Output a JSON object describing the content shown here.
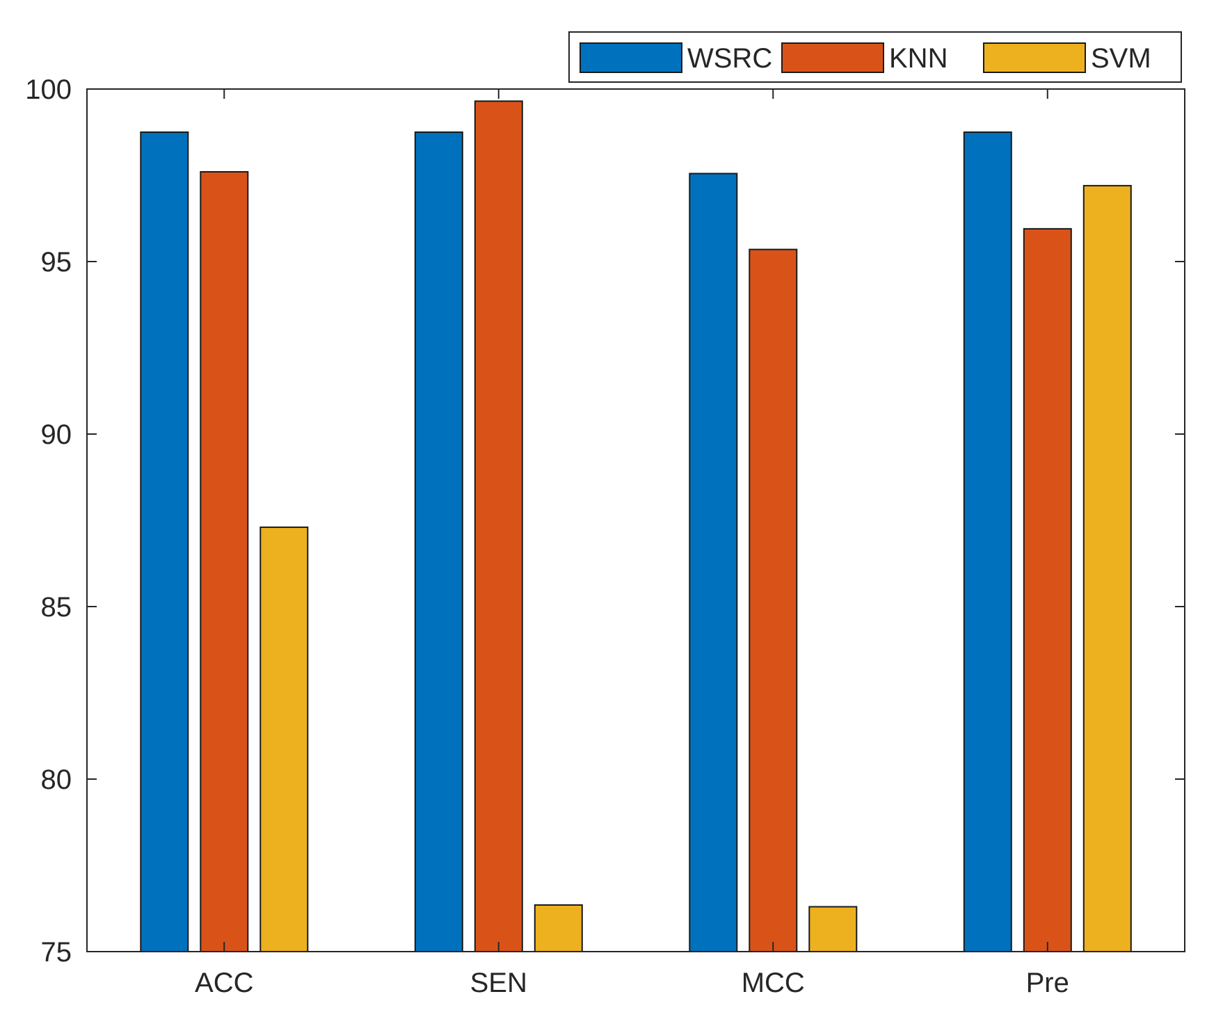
{
  "chart_data": {
    "type": "bar",
    "title": "",
    "xlabel": "",
    "ylabel": "",
    "categories": [
      "ACC",
      "SEN",
      "MCC",
      "Pre"
    ],
    "series": [
      {
        "name": "WSRC",
        "color": "#0072BD",
        "values": [
          98.75,
          98.75,
          97.55,
          98.75
        ]
      },
      {
        "name": "KNN",
        "color": "#D95319",
        "values": [
          97.6,
          99.65,
          95.35,
          95.95
        ]
      },
      {
        "name": "SVM",
        "color": "#EDB120",
        "values": [
          87.3,
          76.35,
          76.3,
          97.2
        ]
      }
    ],
    "ylim": [
      75,
      100
    ],
    "yticks": [
      75,
      80,
      85,
      90,
      95,
      100
    ],
    "grid": false,
    "legend_position": "top-right-outside"
  }
}
